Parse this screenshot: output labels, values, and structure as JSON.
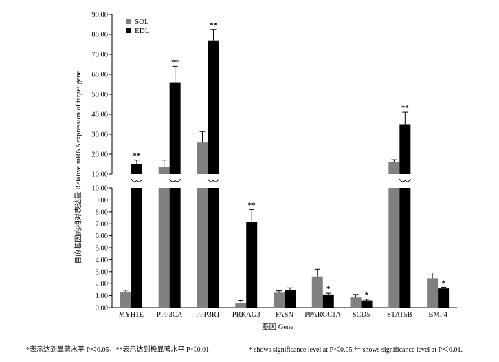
{
  "chart_data": {
    "type": "bar",
    "broken_axis": true,
    "xlabel": "基因 Gene",
    "ylabel": "目的基因的相对表达量 Relative mRNAexpression of target gene",
    "lower_ylim": [
      0,
      10
    ],
    "lower_ticks": [
      "0.00",
      "1.00",
      "2.00",
      "3.00",
      "4.00",
      "5.00",
      "6.00",
      "7.00",
      "8.00",
      "9.00",
      "10.00"
    ],
    "upper_ylim": [
      10,
      90
    ],
    "upper_ticks": [
      "10.00",
      "20.00",
      "30.00",
      "40.00",
      "50.00",
      "60.00",
      "70.00",
      "80.00",
      "90.00"
    ],
    "legend_position": "top-left",
    "categories": [
      "MYH1E",
      "PPP3CA",
      "PPP3R1",
      "PRKAG3",
      "FASN",
      "PPARGC1A",
      "SCD5",
      "STAT5B",
      "BMP4"
    ],
    "series": [
      {
        "name": "SOL",
        "color": "#808080",
        "values": [
          1.3,
          13.5,
          25.8,
          0.4,
          1.25,
          2.6,
          0.85,
          16.0,
          2.45
        ],
        "errors": [
          0.15,
          3.5,
          5.5,
          0.2,
          0.15,
          0.6,
          0.25,
          1.2,
          0.45
        ],
        "significance": [
          "",
          "",
          "",
          "",
          "",
          "",
          "",
          "",
          ""
        ]
      },
      {
        "name": "EDL",
        "color": "#000000",
        "values": [
          15.0,
          56.0,
          77.0,
          7.15,
          1.45,
          1.1,
          0.6,
          35.0,
          1.6
        ],
        "errors": [
          2.0,
          8.0,
          5.5,
          1.05,
          0.2,
          0.1,
          0.1,
          6.0,
          0.1
        ],
        "significance": [
          "**",
          "**",
          "**",
          "**",
          "",
          "*",
          "*",
          "**",
          "*"
        ]
      }
    ],
    "footnote_cn": "*表示达到显著水平 P＜0.05，**表示达到极显著水平 P＜0.01",
    "footnote_en": "* shows significance level at P＜0.05,** shows significance level at P＜0.01."
  }
}
